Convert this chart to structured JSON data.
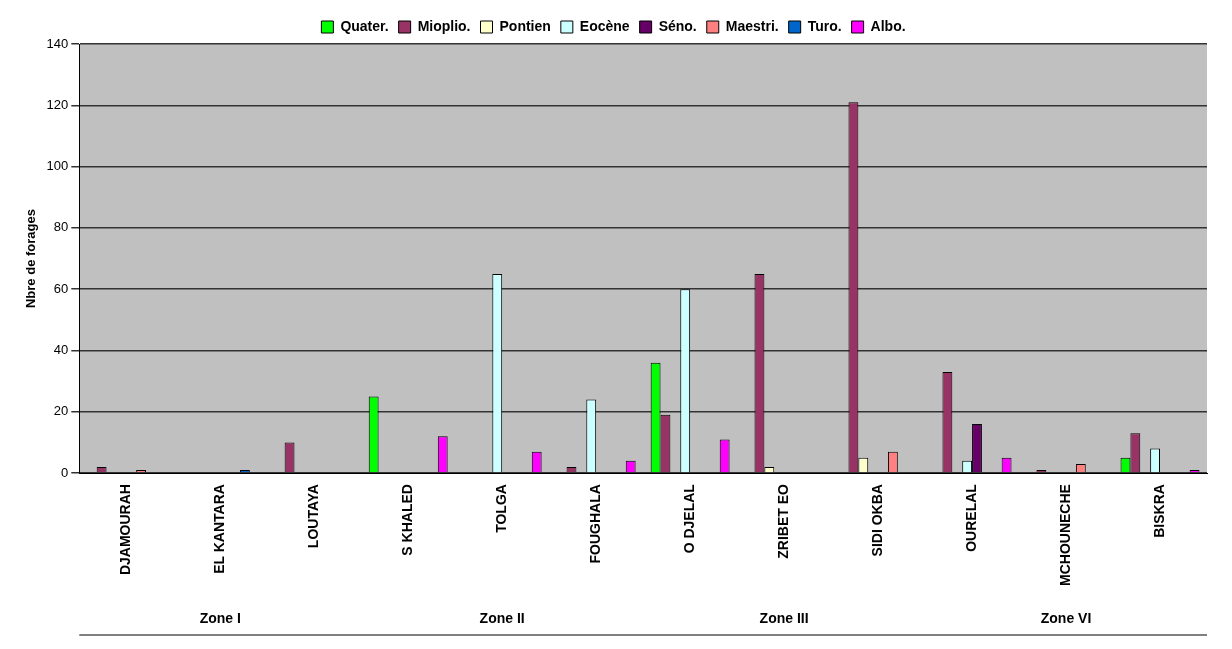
{
  "chart_data": {
    "type": "bar",
    "ylabel": "Nbre de forages",
    "categories": [
      "DJAMOURAH",
      "EL KANTARA",
      "LOUTAYA",
      "S KHALED",
      "TOLGA",
      "FOUGHALA",
      "O DJELAL",
      "ZRIBET EO",
      "SIDI OKBA",
      "OURELAL",
      "MCHOUNECHE",
      "BISKRA"
    ],
    "series": [
      {
        "name": "Quater.",
        "color": "#00ff00",
        "values": [
          0,
          0,
          0,
          25,
          0,
          0,
          36,
          0,
          0,
          0,
          0,
          5
        ]
      },
      {
        "name": "Mioplio.",
        "color": "#993366",
        "values": [
          2,
          0,
          10,
          0,
          0,
          2,
          19,
          65,
          121,
          33,
          1,
          13
        ]
      },
      {
        "name": "Pontien",
        "color": "#ffffcc",
        "values": [
          0,
          0,
          0,
          0,
          0,
          0,
          0,
          2,
          5,
          0,
          0,
          0
        ]
      },
      {
        "name": "Eocène",
        "color": "#ccffff",
        "values": [
          0,
          0,
          0,
          0,
          65,
          24,
          60,
          0,
          0,
          4,
          0,
          8
        ]
      },
      {
        "name": "Séno.",
        "color": "#660066",
        "values": [
          0,
          0,
          0,
          0,
          0,
          0,
          0,
          0,
          0,
          16,
          0,
          0
        ]
      },
      {
        "name": "Maestri.",
        "color": "#ff8080",
        "values": [
          1,
          0,
          0,
          0,
          0,
          0,
          0,
          0,
          7,
          0,
          3,
          0
        ]
      },
      {
        "name": "Turo.",
        "color": "#0066cc",
        "values": [
          0,
          1,
          0,
          0,
          0,
          0,
          0,
          0,
          0,
          0,
          0,
          0
        ]
      },
      {
        "name": "Albo.",
        "color": "#ff00ff",
        "values": [
          0,
          0,
          0,
          12,
          7,
          4,
          11,
          0,
          0,
          5,
          0,
          1
        ]
      }
    ],
    "ylim": [
      0,
      140
    ],
    "yticks": [
      0,
      20,
      40,
      60,
      80,
      100,
      120,
      140
    ],
    "grid": "y",
    "legend": "top",
    "annotations": [
      "Zone I",
      "Zone II",
      "Zone III",
      "Zone VI"
    ]
  }
}
